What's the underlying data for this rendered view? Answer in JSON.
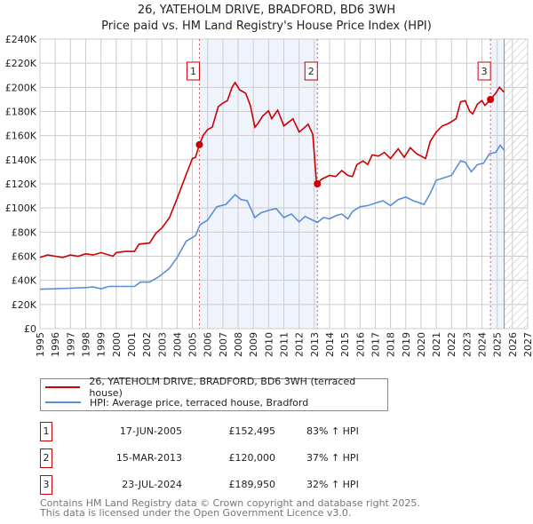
{
  "title": "26, YATEHOLM DRIVE, BRADFORD, BD6 3WH",
  "subtitle": "Price paid vs. HM Land Registry's House Price Index (HPI)",
  "chart_data": {
    "type": "line",
    "title": "26, YATEHOLM DRIVE, BRADFORD, BD6 3WH",
    "subtitle": "Price paid vs. HM Land Registry's House Price Index (HPI)",
    "xlim": [
      1995,
      2027
    ],
    "ylim": [
      0,
      240000
    ],
    "x_ticks": [
      "1995",
      "1996",
      "1997",
      "1998",
      "1999",
      "2000",
      "2001",
      "2002",
      "2003",
      "2004",
      "2005",
      "2006",
      "2007",
      "2008",
      "2009",
      "2010",
      "2011",
      "2012",
      "2013",
      "2014",
      "2015",
      "2016",
      "2017",
      "2018",
      "2019",
      "2020",
      "2021",
      "2022",
      "2023",
      "2024",
      "2025",
      "2026",
      "2027"
    ],
    "y_ticks": [
      "£0",
      "£20K",
      "£40K",
      "£60K",
      "£80K",
      "£100K",
      "£120K",
      "£140K",
      "£160K",
      "£180K",
      "£200K",
      "£220K",
      "£240K"
    ],
    "grid": true,
    "shaded_ranges": [
      [
        2005.46,
        2013.2
      ],
      [
        2024.56,
        2025.46
      ]
    ],
    "forecast_hatch_from": 2025.46,
    "series": [
      {
        "name": "26, YATEHOLM DRIVE, BRADFORD, BD6 3WH (terraced house)",
        "color": "#cc0000",
        "x": [
          1995,
          1995.5,
          1996,
          1996.5,
          1997,
          1997.5,
          1998,
          1998.5,
          1999,
          1999.8,
          2000,
          2000.6,
          2001.2,
          2001.5,
          2002.2,
          2002.6,
          2003,
          2003.5,
          2004,
          2004.3,
          2004.6,
          2005,
          2005.2,
          2005.46,
          2005.7,
          2006,
          2006.3,
          2006.7,
          2007,
          2007.3,
          2007.6,
          2007.8,
          2008.1,
          2008.5,
          2008.8,
          2009.1,
          2009.3,
          2009.6,
          2010,
          2010.2,
          2010.6,
          2011,
          2011.6,
          2012,
          2012.3,
          2012.6,
          2012.9,
          2013.15,
          2013.5,
          2014,
          2014.4,
          2014.8,
          2015.2,
          2015.5,
          2015.8,
          2016.2,
          2016.5,
          2016.8,
          2017.2,
          2017.6,
          2018,
          2018.5,
          2018.9,
          2019.3,
          2019.7,
          2020.3,
          2020.6,
          2021,
          2021.4,
          2021.8,
          2022.3,
          2022.6,
          2022.9,
          2023.2,
          2023.4,
          2023.7,
          2024,
          2024.2,
          2024.56,
          2024.9,
          2025.15,
          2025.45
        ],
        "y": [
          59000,
          61000,
          60000,
          59000,
          61000,
          60000,
          62000,
          61000,
          63000,
          60000,
          63000,
          64000,
          64000,
          70000,
          71000,
          79000,
          83500,
          92000,
          108000,
          118000,
          128000,
          141000,
          142000,
          152495,
          160000,
          165000,
          167000,
          184000,
          187000,
          189000,
          200000,
          204000,
          198000,
          195000,
          185000,
          167000,
          170000,
          176000,
          180600,
          174000,
          181000,
          168000,
          174000,
          163000,
          166000,
          169500,
          161000,
          120000,
          124000,
          127000,
          126000,
          131000,
          127000,
          126000,
          136000,
          139000,
          136000,
          144000,
          143000,
          146000,
          141000,
          149000,
          142000,
          150000,
          145000,
          141000,
          155000,
          163000,
          168000,
          170000,
          174000,
          188000,
          189000,
          180000,
          178000,
          186000,
          189000,
          185000,
          189950,
          195000,
          200000,
          196000
        ]
      },
      {
        "name": "HPI: Average price, terraced house, Bradford",
        "color": "#5b8fd4",
        "x": [
          1995,
          1996,
          1997,
          1998,
          1998.5,
          1999,
          1999.5,
          2000,
          2001.2,
          2001.6,
          2002.2,
          2002.8,
          2003.5,
          2004,
          2004.6,
          2005.2,
          2005.5,
          2006,
          2006.6,
          2007.2,
          2007.8,
          2008.2,
          2008.6,
          2009.1,
          2009.5,
          2010,
          2010.5,
          2011,
          2011.5,
          2012,
          2012.4,
          2013.2,
          2013.6,
          2014,
          2014.5,
          2014.8,
          2015.2,
          2015.5,
          2016,
          2016.5,
          2017,
          2017.5,
          2018,
          2018.5,
          2019,
          2019.5,
          2020.2,
          2020.6,
          2021,
          2021.5,
          2022,
          2022.6,
          2022.9,
          2023.3,
          2023.7,
          2024.1,
          2024.5,
          2024.9,
          2025.2,
          2025.45
        ],
        "y": [
          32700,
          33000,
          33500,
          34000,
          34500,
          33000,
          35000,
          35000,
          35000,
          38600,
          38600,
          43000,
          50000,
          59000,
          72500,
          77000,
          86000,
          90000,
          101000,
          103000,
          111000,
          107000,
          106000,
          92000,
          96000,
          98000,
          99500,
          92000,
          95000,
          88500,
          93000,
          88000,
          92000,
          91000,
          94000,
          95000,
          91000,
          97000,
          101000,
          102000,
          104000,
          106000,
          102000,
          107000,
          109000,
          106000,
          103000,
          112000,
          123000,
          125000,
          127000,
          139000,
          138000,
          130000,
          136000,
          137000,
          145000,
          146000,
          152000,
          148000
        ]
      }
    ],
    "sales": [
      {
        "label": "1",
        "x": 2005.46,
        "y": 152495
      },
      {
        "label": "2",
        "x": 2013.2,
        "y": 120000
      },
      {
        "label": "3",
        "x": 2024.56,
        "y": 189950
      }
    ]
  },
  "legend": [
    {
      "label": "26, YATEHOLM DRIVE, BRADFORD, BD6 3WH (terraced house)",
      "color": "#cc0000"
    },
    {
      "label": "HPI: Average price, terraced house, Bradford",
      "color": "#5b8fd4"
    }
  ],
  "transactions": [
    {
      "num": "1",
      "date": "17-JUN-2005",
      "price": "£152,495",
      "hpi": "83% ↑ HPI"
    },
    {
      "num": "2",
      "date": "15-MAR-2013",
      "price": "£120,000",
      "hpi": "37% ↑ HPI"
    },
    {
      "num": "3",
      "date": "23-JUL-2024",
      "price": "£189,950",
      "hpi": "32% ↑ HPI"
    }
  ],
  "footer": {
    "line1": "Contains HM Land Registry data © Crown copyright and database right 2025.",
    "line2": "This data is licensed under the Open Government Licence v3.0."
  }
}
